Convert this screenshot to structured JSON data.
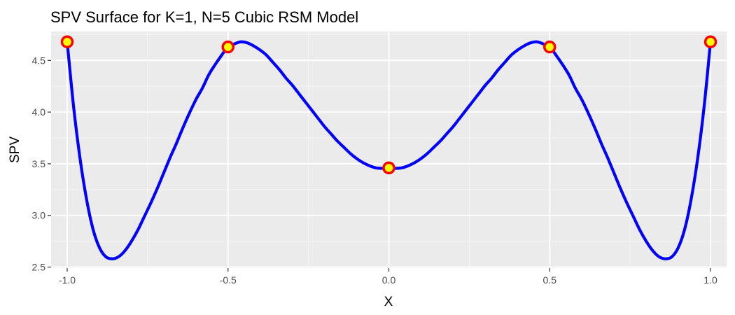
{
  "chart_data": {
    "type": "line",
    "title": "SPV Surface for K=1, N=5 Cubic RSM Model",
    "xlabel": "X",
    "ylabel": "SPV",
    "xlim": [
      -1.05,
      1.05
    ],
    "ylim": [
      2.49,
      4.78
    ],
    "x_ticks": [
      -1.0,
      -0.5,
      0.0,
      0.5,
      1.0
    ],
    "x_tick_labels": [
      "-1.0",
      "-0.5",
      "0.0",
      "0.5",
      "1.0"
    ],
    "y_ticks": [
      2.5,
      3.0,
      3.5,
      4.0,
      4.5
    ],
    "y_tick_labels": [
      "2.5",
      "3.0",
      "3.5",
      "4.0",
      "4.5"
    ],
    "grid": true,
    "legend": "none",
    "series": [
      {
        "kind": "curve",
        "color": "#0000ff",
        "points": [
          [
            -1.0,
            4.68
          ],
          [
            -0.98,
            4.05
          ],
          [
            -0.96,
            3.55
          ],
          [
            -0.94,
            3.16
          ],
          [
            -0.92,
            2.87
          ],
          [
            -0.9,
            2.69
          ],
          [
            -0.88,
            2.6
          ],
          [
            -0.86,
            2.58
          ],
          [
            -0.84,
            2.6
          ],
          [
            -0.82,
            2.66
          ],
          [
            -0.8,
            2.75
          ],
          [
            -0.78,
            2.86
          ],
          [
            -0.76,
            2.99
          ],
          [
            -0.74,
            3.12
          ],
          [
            -0.72,
            3.26
          ],
          [
            -0.7,
            3.41
          ],
          [
            -0.68,
            3.56
          ],
          [
            -0.66,
            3.7
          ],
          [
            -0.64,
            3.85
          ],
          [
            -0.62,
            3.99
          ],
          [
            -0.6,
            4.12
          ],
          [
            -0.58,
            4.23
          ],
          [
            -0.56,
            4.36
          ],
          [
            -0.54,
            4.46
          ],
          [
            -0.52,
            4.55
          ],
          [
            -0.5,
            4.63
          ],
          [
            -0.48,
            4.66
          ],
          [
            -0.46,
            4.68
          ],
          [
            -0.44,
            4.67
          ],
          [
            -0.42,
            4.64
          ],
          [
            -0.4,
            4.6
          ],
          [
            -0.38,
            4.55
          ],
          [
            -0.36,
            4.48
          ],
          [
            -0.34,
            4.41
          ],
          [
            -0.32,
            4.33
          ],
          [
            -0.3,
            4.26
          ],
          [
            -0.28,
            4.18
          ],
          [
            -0.26,
            4.1
          ],
          [
            -0.24,
            4.02
          ],
          [
            -0.22,
            3.94
          ],
          [
            -0.2,
            3.86
          ],
          [
            -0.18,
            3.79
          ],
          [
            -0.16,
            3.72
          ],
          [
            -0.14,
            3.66
          ],
          [
            -0.12,
            3.6
          ],
          [
            -0.1,
            3.55
          ],
          [
            -0.08,
            3.51
          ],
          [
            -0.06,
            3.48
          ],
          [
            -0.04,
            3.46
          ],
          [
            -0.02,
            3.455
          ],
          [
            0.0,
            3.455
          ],
          [
            0.02,
            3.455
          ],
          [
            0.04,
            3.46
          ],
          [
            0.06,
            3.48
          ],
          [
            0.08,
            3.51
          ],
          [
            0.1,
            3.55
          ],
          [
            0.12,
            3.6
          ],
          [
            0.14,
            3.66
          ],
          [
            0.16,
            3.72
          ],
          [
            0.18,
            3.79
          ],
          [
            0.2,
            3.86
          ],
          [
            0.22,
            3.94
          ],
          [
            0.24,
            4.02
          ],
          [
            0.26,
            4.1
          ],
          [
            0.28,
            4.18
          ],
          [
            0.3,
            4.26
          ],
          [
            0.32,
            4.33
          ],
          [
            0.34,
            4.41
          ],
          [
            0.36,
            4.48
          ],
          [
            0.38,
            4.55
          ],
          [
            0.4,
            4.6
          ],
          [
            0.42,
            4.64
          ],
          [
            0.44,
            4.67
          ],
          [
            0.46,
            4.68
          ],
          [
            0.48,
            4.66
          ],
          [
            0.5,
            4.63
          ],
          [
            0.52,
            4.55
          ],
          [
            0.54,
            4.46
          ],
          [
            0.56,
            4.36
          ],
          [
            0.58,
            4.23
          ],
          [
            0.6,
            4.12
          ],
          [
            0.62,
            3.99
          ],
          [
            0.64,
            3.85
          ],
          [
            0.66,
            3.7
          ],
          [
            0.68,
            3.56
          ],
          [
            0.7,
            3.41
          ],
          [
            0.72,
            3.26
          ],
          [
            0.74,
            3.12
          ],
          [
            0.76,
            2.99
          ],
          [
            0.78,
            2.86
          ],
          [
            0.8,
            2.75
          ],
          [
            0.82,
            2.66
          ],
          [
            0.84,
            2.6
          ],
          [
            0.86,
            2.58
          ],
          [
            0.88,
            2.6
          ],
          [
            0.9,
            2.69
          ],
          [
            0.92,
            2.87
          ],
          [
            0.94,
            3.16
          ],
          [
            0.96,
            3.55
          ],
          [
            0.98,
            4.05
          ],
          [
            1.0,
            4.68
          ]
        ]
      },
      {
        "kind": "design-points",
        "fill": "#ffff00",
        "stroke": "#ff0000",
        "x": [
          -1.0,
          -0.5,
          0.0,
          0.5,
          1.0
        ],
        "y": [
          4.68,
          4.63,
          3.46,
          4.63,
          4.68
        ]
      }
    ],
    "colors": {
      "panel_background": "#ebebeb",
      "grid_major": "#ffffff",
      "grid_minor": "#f5f5f5",
      "tick_text": "#4d4d4d",
      "tick_mark": "#333333"
    }
  }
}
